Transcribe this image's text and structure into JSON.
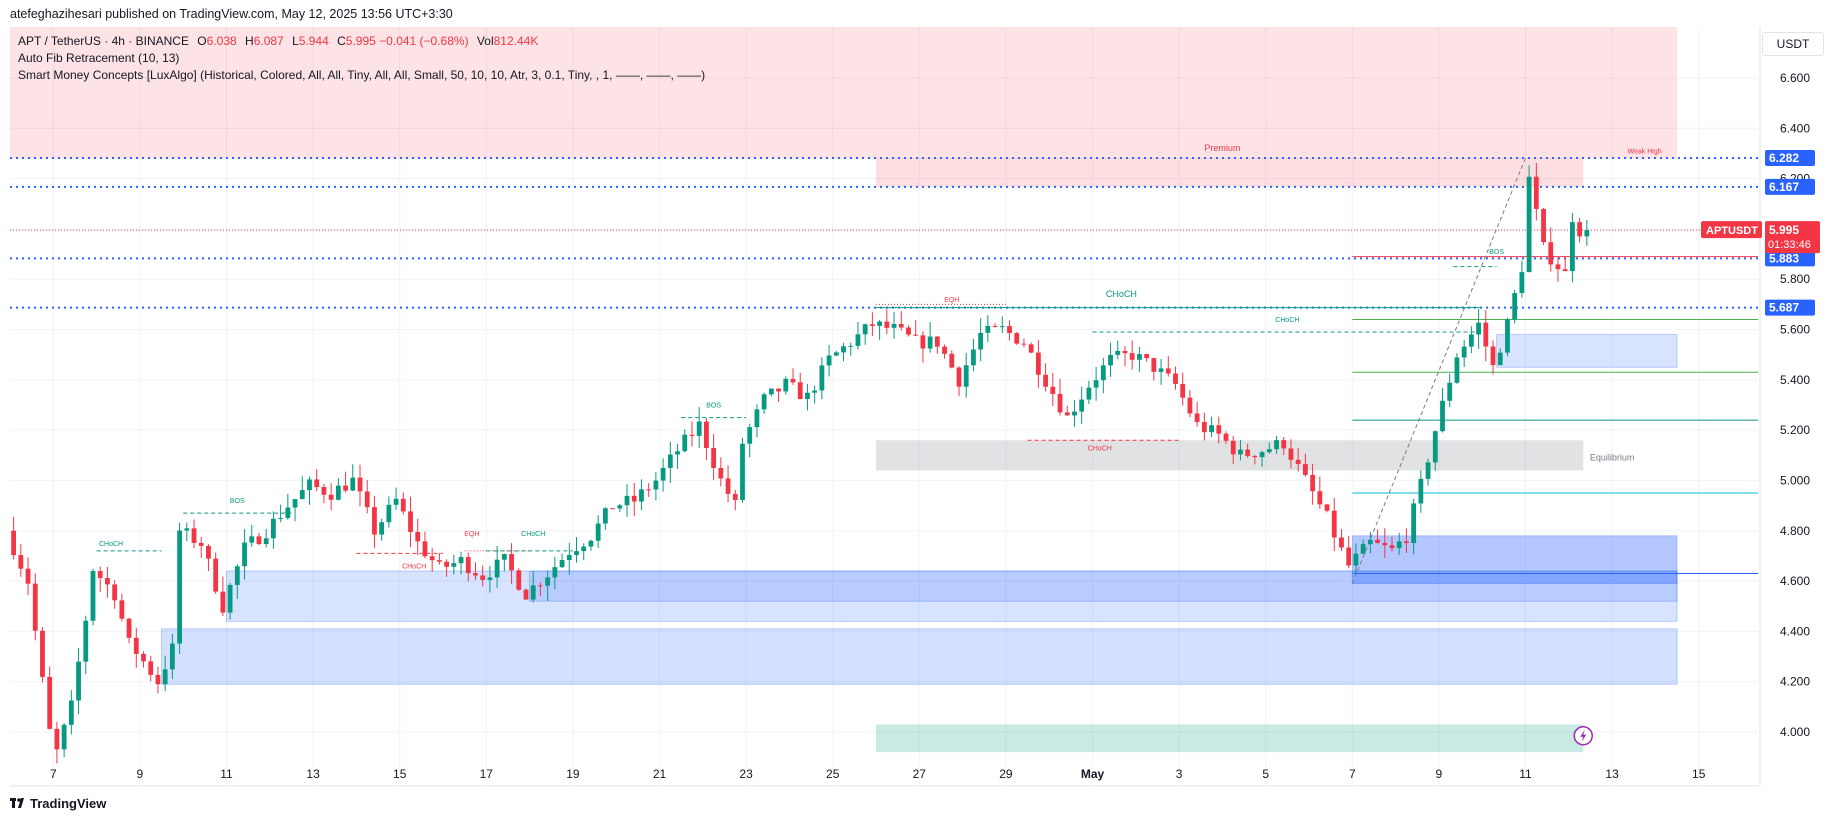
{
  "header": {
    "publish_line": "atefeghazihesari published on TradingView.com, May 12, 2025 13:56 UTC+3:30"
  },
  "legend": {
    "symbol": "APT / TetherUS · 4h · BINANCE",
    "open_label": "O",
    "open": "6.038",
    "high_label": "H",
    "high": "6.087",
    "low_label": "L",
    "low": "5.944",
    "close_label": "C",
    "close": "5.995",
    "change": "−0.041 (−0.68%)",
    "vol_label": "Vol",
    "vol": "812.44K",
    "indicator_1": "Auto Fib Retracement (10, 13)",
    "indicator_2": "Smart Money Concepts [LuxAlgo] (Historical, Colored, All, All, Tiny, All, All, Small, 50, 10, 10, Atr, 3, 0.1, Tiny, , 1, ——, ——, ——)"
  },
  "currency": "USDT",
  "footer": {
    "brand": "TradingView"
  },
  "colors": {
    "up": "#089981",
    "down": "#f23645",
    "blue_line": "#2962ff",
    "zone_blue": "#2962ff",
    "premium": "#f23645",
    "discount": "#089981"
  },
  "chart_data": {
    "type": "candlestick",
    "title": "",
    "ylim": [
      3.85,
      6.85
    ],
    "y_ticks": [
      "6.600",
      "6.400",
      "6.200",
      "6.000",
      "5.800",
      "5.600",
      "5.400",
      "5.200",
      "5.000",
      "4.800",
      "4.600",
      "4.400",
      "4.200",
      "4.000"
    ],
    "x_ticks": [
      "7",
      "9",
      "11",
      "13",
      "15",
      "17",
      "19",
      "21",
      "23",
      "25",
      "27",
      "29",
      "May",
      "3",
      "5",
      "7",
      "9",
      "11",
      "13",
      "15"
    ],
    "x_domain_start": "2025-04-06",
    "x_tick_dates": [
      "2025-04-07",
      "2025-04-09",
      "2025-04-11",
      "2025-04-13",
      "2025-04-15",
      "2025-04-17",
      "2025-04-19",
      "2025-04-21",
      "2025-04-23",
      "2025-04-25",
      "2025-04-27",
      "2025-04-29",
      "2025-05-01",
      "2025-05-03",
      "2025-05-05",
      "2025-05-07",
      "2025-05-09",
      "2025-05-11",
      "2025-05-13",
      "2025-05-15"
    ],
    "price_labels": [
      {
        "text": "6.282",
        "value": 6.282,
        "color": "#2962ff"
      },
      {
        "text": "6.167",
        "value": 6.167,
        "color": "#2962ff"
      },
      {
        "text": "5.883",
        "value": 5.883,
        "color": "#2962ff"
      },
      {
        "text": "5.687",
        "value": 5.687,
        "color": "#2962ff"
      }
    ],
    "last_price": {
      "symbol": "APTUSDT",
      "price": "5.995",
      "countdown": "01:33:46",
      "value": 5.995
    },
    "key_points": [
      [
        "2025-04-06",
        4.8
      ],
      [
        "2025-04-06T12:00",
        4.6
      ],
      [
        "2025-04-07",
        4.0
      ],
      [
        "2025-04-07T04:00",
        3.92
      ],
      [
        "2025-04-07T12:00",
        4.1
      ],
      [
        "2025-04-07T20:00",
        4.45
      ],
      [
        "2025-04-08",
        4.65
      ],
      [
        "2025-04-08T12:00",
        4.55
      ],
      [
        "2025-04-08T20:00",
        4.35
      ],
      [
        "2025-04-09",
        4.32
      ],
      [
        "2025-04-09T12:00",
        4.2
      ],
      [
        "2025-04-09T20:00",
        4.33
      ],
      [
        "2025-04-10",
        4.8
      ],
      [
        "2025-04-10T12:00",
        4.75
      ],
      [
        "2025-04-11",
        4.5
      ],
      [
        "2025-04-11T12:00",
        4.73
      ],
      [
        "2025-04-12",
        4.8
      ],
      [
        "2025-04-12T12:00",
        4.9
      ],
      [
        "2025-04-13",
        4.98
      ],
      [
        "2025-04-13T12:00",
        4.95
      ],
      [
        "2025-04-14",
        5.0
      ],
      [
        "2025-04-14T12:00",
        4.8
      ],
      [
        "2025-04-15",
        4.92
      ],
      [
        "2025-04-15T12:00",
        4.75
      ],
      [
        "2025-04-16",
        4.65
      ],
      [
        "2025-04-16T12:00",
        4.68
      ],
      [
        "2025-04-17",
        4.62
      ],
      [
        "2025-04-17T12:00",
        4.68
      ],
      [
        "2025-04-18",
        4.55
      ],
      [
        "2025-04-18T12:00",
        4.63
      ],
      [
        "2025-04-19",
        4.72
      ],
      [
        "2025-04-19T12:00",
        4.78
      ],
      [
        "2025-04-20",
        4.9
      ],
      [
        "2025-04-20T12:00",
        4.92
      ],
      [
        "2025-04-21",
        5.0
      ],
      [
        "2025-04-21T12:00",
        5.12
      ],
      [
        "2025-04-22",
        5.22
      ],
      [
        "2025-04-22T12:00",
        5.0
      ],
      [
        "2025-04-22T20:00",
        4.9
      ],
      [
        "2025-04-23",
        5.15
      ],
      [
        "2025-04-23T12:00",
        5.32
      ],
      [
        "2025-04-24",
        5.38
      ],
      [
        "2025-04-24T12:00",
        5.33
      ],
      [
        "2025-04-25",
        5.48
      ],
      [
        "2025-04-25T12:00",
        5.55
      ],
      [
        "2025-04-26",
        5.62
      ],
      [
        "2025-04-26T12:00",
        5.6
      ],
      [
        "2025-04-27",
        5.55
      ],
      [
        "2025-04-27T12:00",
        5.55
      ],
      [
        "2025-04-28",
        5.4
      ],
      [
        "2025-04-28T12:00",
        5.58
      ],
      [
        "2025-04-29",
        5.6
      ],
      [
        "2025-04-29T12:00",
        5.55
      ],
      [
        "2025-04-30",
        5.4
      ],
      [
        "2025-04-30T12:00",
        5.25
      ],
      [
        "2025-05-01",
        5.38
      ],
      [
        "2025-05-01T12:00",
        5.48
      ],
      [
        "2025-05-02",
        5.5
      ],
      [
        "2025-05-02T12:00",
        5.45
      ],
      [
        "2025-05-03",
        5.38
      ],
      [
        "2025-05-03T12:00",
        5.22
      ],
      [
        "2025-05-04",
        5.18
      ],
      [
        "2025-05-04T12:00",
        5.1
      ],
      [
        "2025-05-05",
        5.12
      ],
      [
        "2025-05-05T12:00",
        5.15
      ],
      [
        "2025-05-06",
        5.0
      ],
      [
        "2025-05-06T12:00",
        4.85
      ],
      [
        "2025-05-06T20:00",
        4.72
      ],
      [
        "2025-05-07",
        4.66
      ],
      [
        "2025-05-07T12:00",
        4.75
      ],
      [
        "2025-05-08",
        4.72
      ],
      [
        "2025-05-08T08:00",
        4.78
      ],
      [
        "2025-05-08T16:00",
        4.98
      ],
      [
        "2025-05-09",
        5.2
      ],
      [
        "2025-05-09T12:00",
        5.5
      ],
      [
        "2025-05-10",
        5.62
      ],
      [
        "2025-05-10T08:00",
        5.45
      ],
      [
        "2025-05-10T16:00",
        5.62
      ],
      [
        "2025-05-11",
        5.85
      ],
      [
        "2025-05-11T04:00",
        6.2
      ],
      [
        "2025-05-11T12:00",
        5.92
      ],
      [
        "2025-05-12",
        5.82
      ],
      [
        "2025-05-12T04:00",
        6.05
      ],
      [
        "2025-05-12T08:00",
        5.995
      ]
    ],
    "horizontal_lines": [
      {
        "value": 6.282,
        "style": "dotted",
        "color": "#2962ff"
      },
      {
        "value": 6.167,
        "style": "dotted",
        "color": "#2962ff"
      },
      {
        "value": 5.883,
        "style": "dotted",
        "color": "#2962ff"
      },
      {
        "value": 5.687,
        "style": "dotted",
        "color": "#2962ff"
      }
    ],
    "zones": [
      {
        "name": "premium-area",
        "y1": 6.28,
        "y2": 6.85,
        "x1": "2025-04-06",
        "x2": "2025-05-14T12:00",
        "color": "#f23645",
        "opacity": 0.14
      },
      {
        "name": "premium-box",
        "y1": 6.167,
        "y2": 6.282,
        "x1": "2025-04-26",
        "x2": "2025-05-12T08:00",
        "color": "#f23645",
        "opacity": 0.16
      },
      {
        "name": "equilibrium-box",
        "y1": 5.04,
        "y2": 5.16,
        "x1": "2025-04-26",
        "x2": "2025-05-12T08:00",
        "color": "#787b86",
        "opacity": 0.22
      },
      {
        "name": "discount-box",
        "y1": 3.92,
        "y2": 4.03,
        "x1": "2025-04-26",
        "x2": "2025-05-12T08:00",
        "color": "#089981",
        "opacity": 0.22
      },
      {
        "name": "ob-lower",
        "y1": 4.19,
        "y2": 4.41,
        "x1": "2025-04-09T12:00",
        "x2": "2025-05-14T12:00",
        "color": "#2962ff",
        "opacity": 0.2
      },
      {
        "name": "ob-mid",
        "y1": 4.44,
        "y2": 4.64,
        "x1": "2025-04-11",
        "x2": "2025-05-14T12:00",
        "color": "#2962ff",
        "opacity": 0.18
      },
      {
        "name": "ob-mid-dark",
        "y1": 4.52,
        "y2": 4.64,
        "x1": "2025-04-18",
        "x2": "2025-05-14T12:00",
        "color": "#2962ff",
        "opacity": 0.18
      },
      {
        "name": "ob-may7",
        "y1": 4.59,
        "y2": 4.78,
        "x1": "2025-05-07",
        "x2": "2025-05-14T12:00",
        "color": "#2962ff",
        "opacity": 0.35
      },
      {
        "name": "ob-may10",
        "y1": 5.45,
        "y2": 5.58,
        "x1": "2025-05-10T08:00",
        "x2": "2025-05-14T12:00",
        "color": "#2962ff",
        "opacity": 0.18
      }
    ],
    "fib_lines": [
      {
        "value": 5.64,
        "color": "#4caf50"
      },
      {
        "value": 5.43,
        "color": "#4caf50"
      },
      {
        "value": 5.24,
        "color": "#089981"
      },
      {
        "value": 4.95,
        "color": "#00bcd4"
      },
      {
        "value": 4.63,
        "color": "#2962ff"
      },
      {
        "value": 5.89,
        "color": "#f23645"
      }
    ],
    "annotations": [
      {
        "text": "Premium",
        "x": "2025-05-04",
        "y": 6.31,
        "color": "#f23645",
        "size": 9
      },
      {
        "text": "Weak High",
        "x": "2025-05-13T18:00",
        "y": 6.3,
        "color": "#f23645",
        "size": 7
      },
      {
        "text": "Equilibrium",
        "x": "2025-05-13",
        "y": 5.08,
        "color": "#787b86",
        "size": 9
      },
      {
        "text": "CHoCH",
        "x": "2025-05-01T16:00",
        "y": 5.73,
        "color": "#089981",
        "size": 9
      },
      {
        "text": "CHoCH",
        "x": "2025-05-05T12:00",
        "y": 5.63,
        "color": "#089981",
        "size": 7
      },
      {
        "text": "BOS",
        "x": "2025-05-10T08:00",
        "y": 5.9,
        "color": "#089981",
        "size": 7
      },
      {
        "text": "EQH",
        "x": "2025-04-27T18:00",
        "y": 5.71,
        "color": "#f23645",
        "size": 7
      },
      {
        "text": "CHoCH",
        "x": "2025-05-01T04:00",
        "y": 5.12,
        "color": "#f23645",
        "size": 7
      },
      {
        "text": "BOS",
        "x": "2025-04-22T06:00",
        "y": 5.29,
        "color": "#089981",
        "size": 7
      },
      {
        "text": "BOS",
        "x": "2025-04-11T06:00",
        "y": 4.91,
        "color": "#089981",
        "size": 7
      },
      {
        "text": "CHoCH",
        "x": "2025-04-08T08:00",
        "y": 4.74,
        "color": "#089981",
        "size": 7
      },
      {
        "text": "CHoCH",
        "x": "2025-04-15T08:00",
        "y": 4.65,
        "color": "#f23645",
        "size": 7
      },
      {
        "text": "EQH",
        "x": "2025-04-16T16:00",
        "y": 4.78,
        "color": "#f23645",
        "size": 7
      },
      {
        "text": "CHoCH",
        "x": "2025-04-18T02:00",
        "y": 4.78,
        "color": "#089981",
        "size": 7
      }
    ],
    "structure_lines": [
      {
        "value": 5.687,
        "x1": "2025-04-26",
        "x2": "2025-05-10",
        "color": "#089981",
        "style": "solid"
      },
      {
        "value": 5.7,
        "x1": "2025-04-26",
        "x2": "2025-04-29",
        "color": "#f23645",
        "style": "dotted"
      },
      {
        "value": 5.59,
        "x1": "2025-05-01",
        "x2": "2025-05-09T20:00",
        "color": "#089981",
        "style": "dashed"
      },
      {
        "value": 5.16,
        "x1": "2025-04-29T12:00",
        "x2": "2025-05-03",
        "color": "#f23645",
        "style": "dashed"
      },
      {
        "value": 5.85,
        "x1": "2025-05-09T08:00",
        "x2": "2025-05-10T08:00",
        "color": "#089981",
        "style": "dashed"
      },
      {
        "value": 5.25,
        "x1": "2025-04-21T12:00",
        "x2": "2025-04-23",
        "color": "#089981",
        "style": "dashed"
      },
      {
        "value": 4.87,
        "x1": "2025-04-10",
        "x2": "2025-04-12T12:00",
        "color": "#089981",
        "style": "dashed"
      },
      {
        "value": 4.72,
        "x1": "2025-04-08",
        "x2": "2025-04-09T12:00",
        "color": "#089981",
        "style": "dashed"
      },
      {
        "value": 4.71,
        "x1": "2025-04-14",
        "x2": "2025-04-16",
        "color": "#f23645",
        "style": "dashed"
      },
      {
        "value": 4.72,
        "x1": "2025-04-16T12:00",
        "x2": "2025-04-18",
        "color": "#f23645",
        "style": "dotted"
      },
      {
        "value": 4.72,
        "x1": "2025-04-17",
        "x2": "2025-04-19",
        "color": "#089981",
        "style": "dashed"
      }
    ]
  }
}
